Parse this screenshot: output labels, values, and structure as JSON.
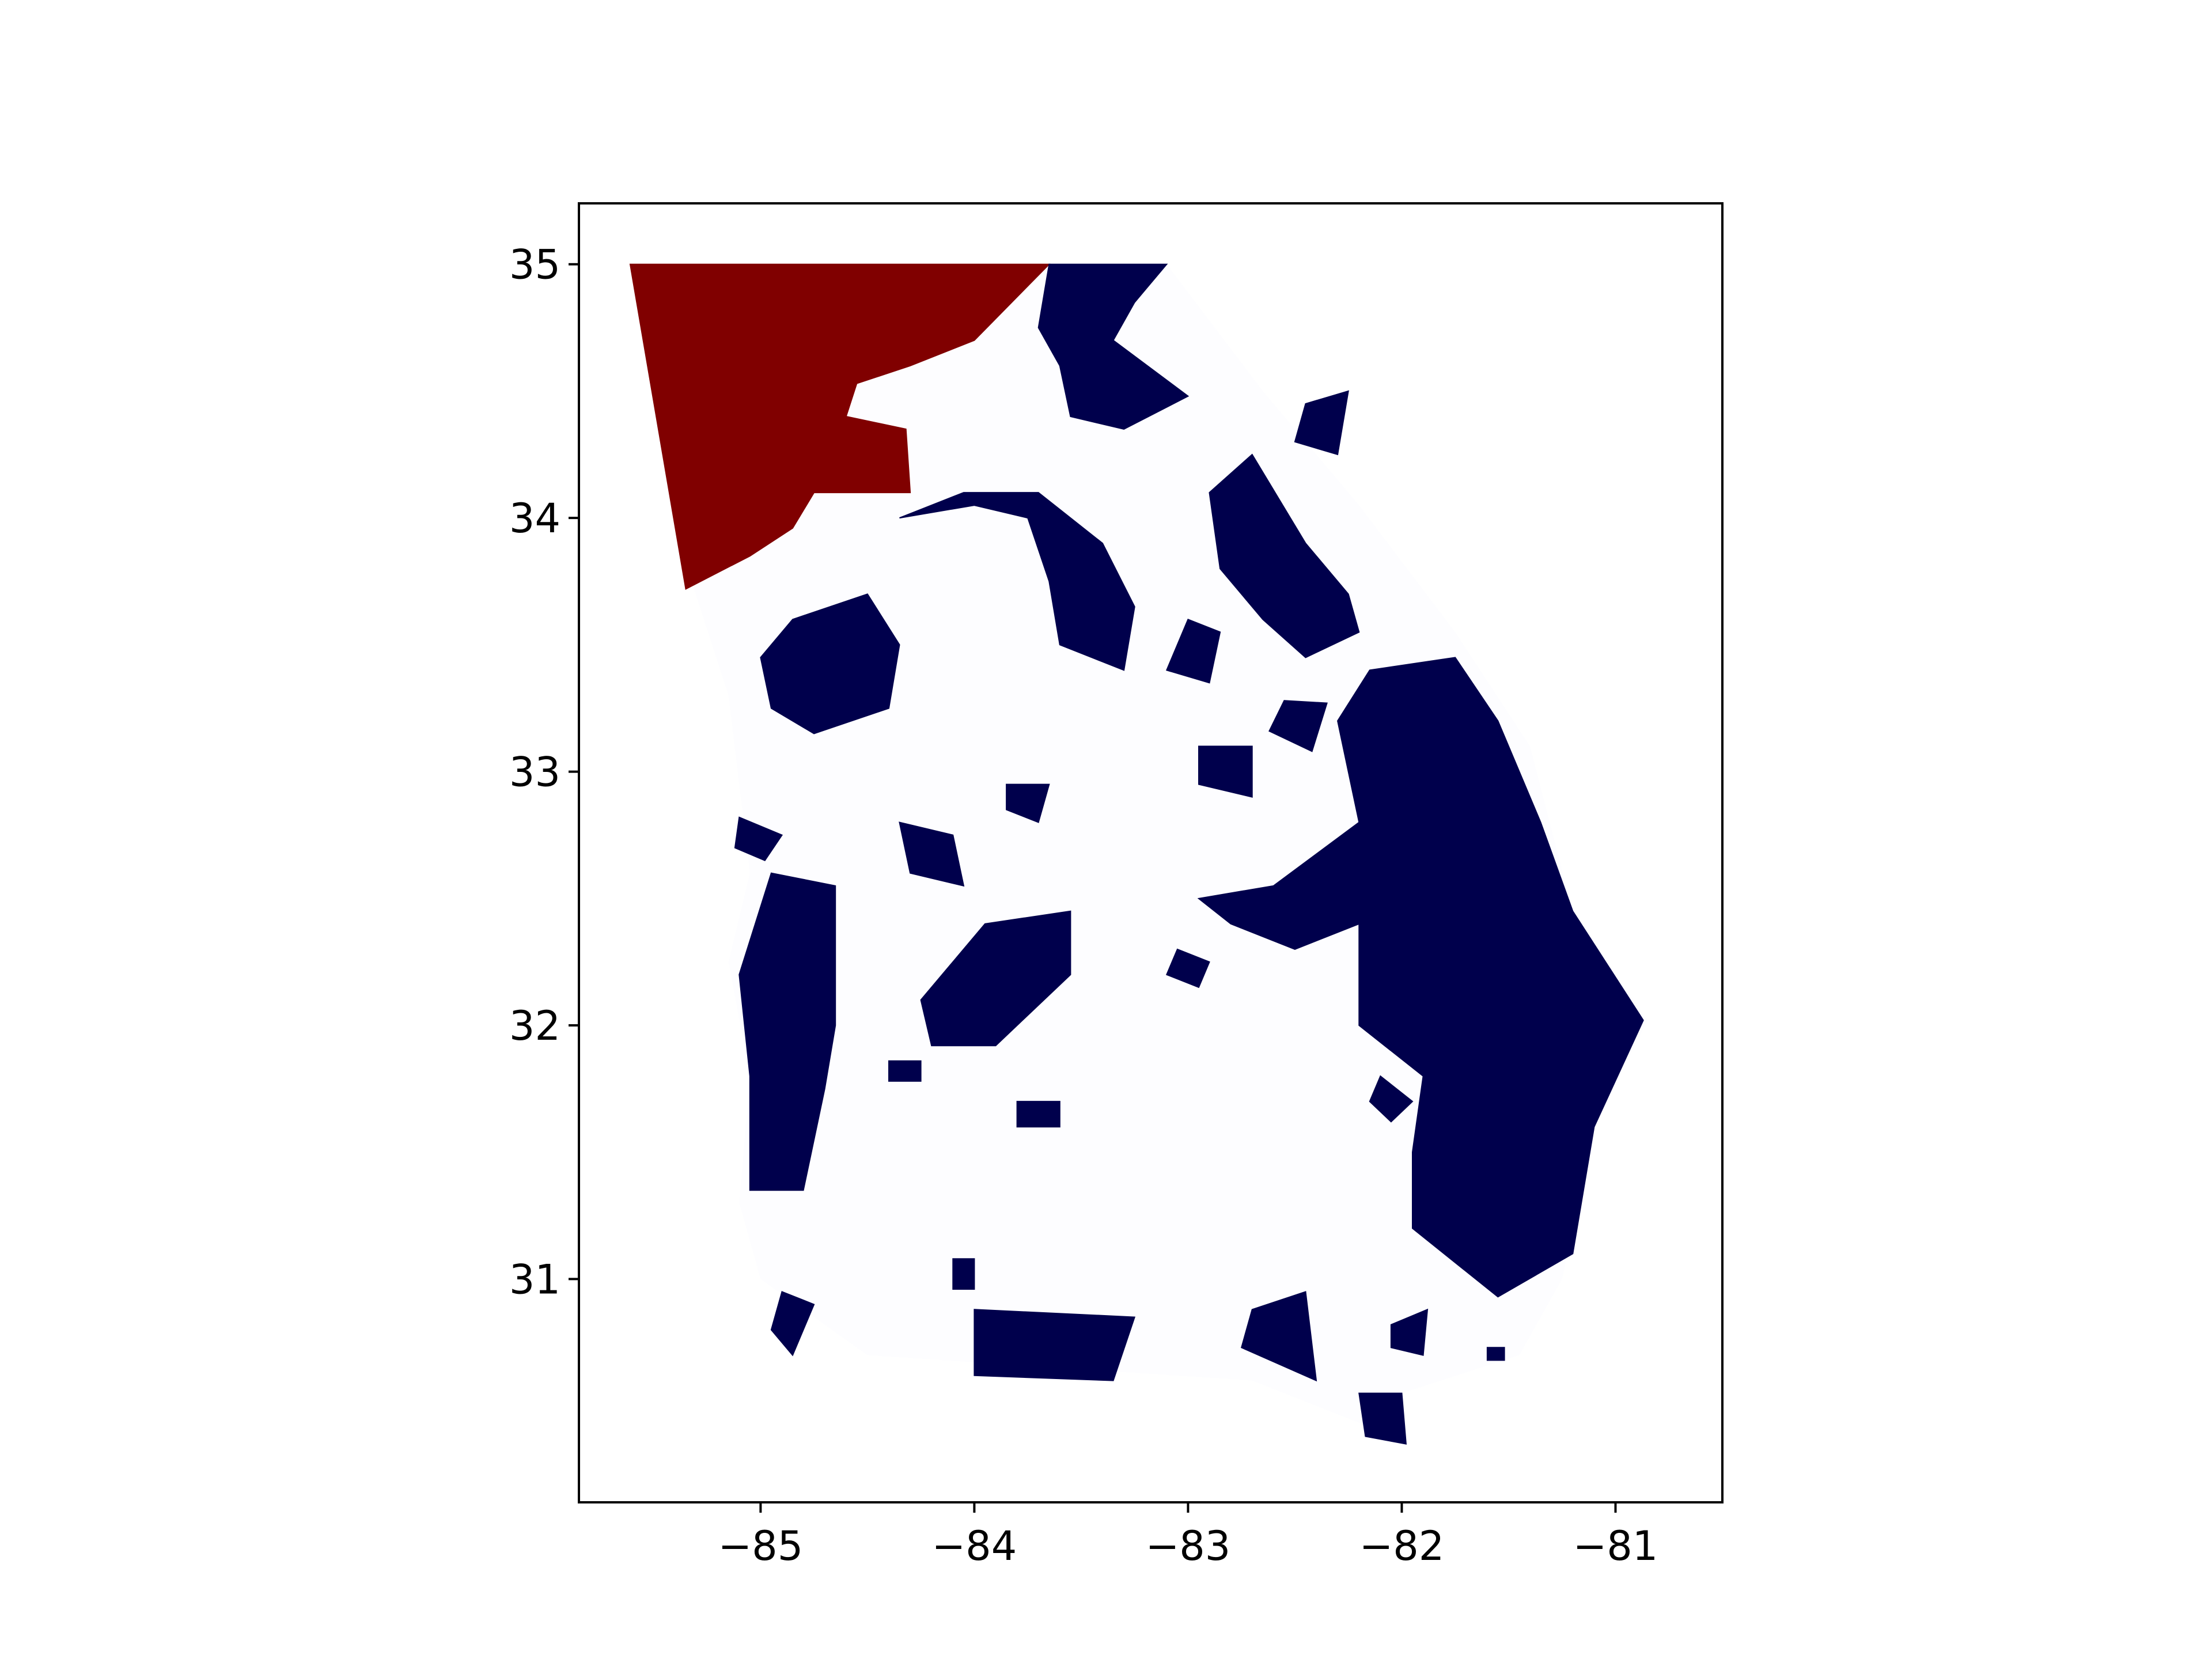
{
  "chart_data": {
    "type": "choropleth-map",
    "title": "",
    "xlabel": "",
    "ylabel": "",
    "xlim": [
      -85.85,
      -80.5
    ],
    "ylim": [
      30.12,
      35.24
    ],
    "x_ticks": [
      -85,
      -84,
      -83,
      -82,
      -81
    ],
    "y_ticks": [
      31,
      32,
      33,
      34,
      35
    ],
    "x_tick_labels": [
      "−85",
      "−84",
      "−83",
      "−82",
      "−81"
    ],
    "y_tick_labels": [
      "31",
      "32",
      "33",
      "34",
      "35"
    ],
    "colors": {
      "background_fill": "#fdfdff",
      "navy": "#00004c",
      "dark_red": "#800000",
      "frame": "#000000"
    },
    "outline": [
      [
        -85.61,
        35
      ],
      [
        -83.1,
        35
      ],
      [
        -82.65,
        34.5
      ],
      [
        -82.2,
        34.05
      ],
      [
        -81.75,
        33.55
      ],
      [
        -81.4,
        33.1
      ],
      [
        -81.2,
        32.45
      ],
      [
        -80.85,
        32.02
      ],
      [
        -81.1,
        31.6
      ],
      [
        -81.25,
        31.0
      ],
      [
        -81.45,
        30.7
      ],
      [
        -82.0,
        30.55
      ],
      [
        -82.1,
        30.4
      ],
      [
        -82.7,
        30.6
      ],
      [
        -84.5,
        30.7
      ],
      [
        -85.0,
        31.0
      ],
      [
        -85.1,
        31.3
      ],
      [
        -85.05,
        31.8
      ],
      [
        -85.15,
        32.25
      ],
      [
        -85.05,
        32.6
      ],
      [
        -85.15,
        33.3
      ],
      [
        -85.4,
        33.95
      ],
      [
        -85.61,
        35
      ]
    ],
    "regions": [
      {
        "color": "dark_red",
        "points": [
          [
            -85.61,
            35
          ],
          [
            -83.65,
            35
          ],
          [
            -84.0,
            34.7
          ],
          [
            -84.3,
            34.6
          ],
          [
            -84.55,
            34.53
          ],
          [
            -84.6,
            34.4
          ],
          [
            -84.32,
            34.35
          ],
          [
            -84.3,
            34.1
          ],
          [
            -84.75,
            34.1
          ],
          [
            -84.85,
            33.96
          ],
          [
            -85.05,
            33.85
          ],
          [
            -85.35,
            33.72
          ]
        ]
      },
      {
        "color": "navy",
        "points": [
          [
            -83.65,
            35
          ],
          [
            -83.1,
            35
          ],
          [
            -83.25,
            34.85
          ],
          [
            -83.35,
            34.7
          ],
          [
            -83.0,
            34.48
          ],
          [
            -83.3,
            34.35
          ],
          [
            -83.55,
            34.4
          ],
          [
            -83.6,
            34.6
          ],
          [
            -83.7,
            34.75
          ]
        ]
      },
      {
        "color": "navy",
        "points": [
          [
            -82.9,
            34.1
          ],
          [
            -82.7,
            34.25
          ],
          [
            -82.45,
            33.9
          ],
          [
            -82.25,
            33.7
          ],
          [
            -82.2,
            33.55
          ],
          [
            -82.45,
            33.45
          ],
          [
            -82.65,
            33.6
          ],
          [
            -82.85,
            33.8
          ]
        ]
      },
      {
        "color": "navy",
        "points": [
          [
            -84.35,
            34.0
          ],
          [
            -84.0,
            34.05
          ],
          [
            -83.75,
            34.0
          ],
          [
            -83.65,
            33.75
          ],
          [
            -83.6,
            33.5
          ],
          [
            -83.3,
            33.4
          ],
          [
            -83.25,
            33.65
          ],
          [
            -83.4,
            33.9
          ],
          [
            -83.7,
            34.1
          ],
          [
            -84.05,
            34.1
          ]
        ]
      },
      {
        "color": "navy",
        "points": [
          [
            -84.85,
            33.6
          ],
          [
            -84.5,
            33.7
          ],
          [
            -84.35,
            33.5
          ],
          [
            -84.4,
            33.25
          ],
          [
            -84.75,
            33.15
          ],
          [
            -84.95,
            33.25
          ],
          [
            -85.0,
            33.45
          ]
        ]
      },
      {
        "color": "navy",
        "points": [
          [
            -82.15,
            33.4
          ],
          [
            -81.75,
            33.45
          ],
          [
            -81.55,
            33.2
          ],
          [
            -81.35,
            32.8
          ],
          [
            -81.2,
            32.45
          ],
          [
            -80.87,
            32.02
          ],
          [
            -81.1,
            31.6
          ],
          [
            -81.2,
            31.1
          ],
          [
            -81.55,
            30.93
          ],
          [
            -81.95,
            31.2
          ],
          [
            -81.95,
            31.5
          ],
          [
            -81.9,
            31.8
          ],
          [
            -82.2,
            32.0
          ],
          [
            -82.2,
            32.4
          ],
          [
            -82.5,
            32.3
          ],
          [
            -82.8,
            32.4
          ],
          [
            -82.95,
            32.5
          ],
          [
            -82.6,
            32.55
          ],
          [
            -82.2,
            32.8
          ],
          [
            -82.3,
            33.2
          ]
        ]
      },
      {
        "color": "navy",
        "points": [
          [
            -84.95,
            32.6
          ],
          [
            -84.65,
            32.55
          ],
          [
            -84.65,
            32.0
          ],
          [
            -84.7,
            31.75
          ],
          [
            -84.8,
            31.35
          ],
          [
            -85.05,
            31.35
          ],
          [
            -85.05,
            31.8
          ],
          [
            -85.1,
            32.2
          ]
        ]
      },
      {
        "color": "navy",
        "points": [
          [
            -84.25,
            32.1
          ],
          [
            -83.95,
            32.4
          ],
          [
            -83.55,
            32.45
          ],
          [
            -83.55,
            32.2
          ],
          [
            -83.9,
            31.92
          ],
          [
            -84.2,
            31.92
          ]
        ]
      },
      {
        "color": "navy",
        "points": [
          [
            -84.0,
            30.88
          ],
          [
            -83.25,
            30.85
          ],
          [
            -83.35,
            30.6
          ],
          [
            -84.0,
            30.62
          ]
        ]
      },
      {
        "color": "navy",
        "points": [
          [
            -82.7,
            30.88
          ],
          [
            -82.45,
            30.95
          ],
          [
            -82.4,
            30.6
          ],
          [
            -82.75,
            30.73
          ]
        ]
      },
      {
        "color": "navy",
        "points": [
          [
            -82.2,
            30.55
          ],
          [
            -82.0,
            30.55
          ],
          [
            -81.98,
            30.35
          ],
          [
            -82.17,
            30.38
          ]
        ]
      },
      {
        "color": "navy",
        "points": [
          [
            -82.95,
            33.1
          ],
          [
            -82.7,
            33.1
          ],
          [
            -82.7,
            32.9
          ],
          [
            -82.95,
            32.95
          ]
        ]
      },
      {
        "color": "navy",
        "points": [
          [
            -82.55,
            33.28
          ],
          [
            -82.35,
            33.27
          ],
          [
            -82.42,
            33.08
          ],
          [
            -82.62,
            33.16
          ]
        ]
      },
      {
        "color": "navy",
        "points": [
          [
            -83.0,
            33.6
          ],
          [
            -82.85,
            33.55
          ],
          [
            -82.9,
            33.35
          ],
          [
            -83.1,
            33.4
          ]
        ]
      },
      {
        "color": "navy",
        "points": [
          [
            -84.35,
            32.8
          ],
          [
            -84.1,
            32.75
          ],
          [
            -84.05,
            32.55
          ],
          [
            -84.3,
            32.6
          ]
        ]
      },
      {
        "color": "navy",
        "points": [
          [
            -85.1,
            32.82
          ],
          [
            -84.9,
            32.75
          ],
          [
            -84.98,
            32.65
          ],
          [
            -85.12,
            32.7
          ]
        ]
      },
      {
        "color": "navy",
        "points": [
          [
            -84.9,
            30.95
          ],
          [
            -84.75,
            30.9
          ],
          [
            -84.85,
            30.7
          ],
          [
            -84.95,
            30.8
          ]
        ]
      },
      {
        "color": "navy",
        "points": [
          [
            -83.05,
            32.3
          ],
          [
            -82.9,
            32.25
          ],
          [
            -82.95,
            32.15
          ],
          [
            -83.1,
            32.2
          ]
        ]
      },
      {
        "color": "navy",
        "points": [
          [
            -82.1,
            31.8
          ],
          [
            -81.95,
            31.7
          ],
          [
            -82.05,
            31.62
          ],
          [
            -82.15,
            31.7
          ]
        ]
      },
      {
        "color": "navy",
        "points": [
          [
            -83.85,
            32.95
          ],
          [
            -83.65,
            32.95
          ],
          [
            -83.7,
            32.8
          ],
          [
            -83.85,
            32.85
          ]
        ]
      },
      {
        "color": "navy",
        "points": [
          [
            -84.0,
            30.96
          ],
          [
            -84.0,
            31.08
          ],
          [
            -84.1,
            31.08
          ],
          [
            -84.1,
            30.96
          ]
        ]
      },
      {
        "color": "navy",
        "points": [
          [
            -84.4,
            31.86
          ],
          [
            -84.25,
            31.86
          ],
          [
            -84.25,
            31.78
          ],
          [
            -84.4,
            31.78
          ]
        ]
      },
      {
        "color": "navy",
        "points": [
          [
            -82.05,
            30.82
          ],
          [
            -81.88,
            30.88
          ],
          [
            -81.9,
            30.7
          ],
          [
            -82.05,
            30.73
          ]
        ]
      },
      {
        "color": "navy",
        "points": [
          [
            -81.6,
            30.73
          ],
          [
            -81.52,
            30.73
          ],
          [
            -81.52,
            30.68
          ],
          [
            -81.6,
            30.68
          ]
        ]
      },
      {
        "color": "navy",
        "points": [
          [
            -82.45,
            34.45
          ],
          [
            -82.25,
            34.5
          ],
          [
            -82.3,
            34.25
          ],
          [
            -82.5,
            34.3
          ]
        ]
      },
      {
        "color": "navy",
        "points": [
          [
            -83.6,
            31.7
          ],
          [
            -83.8,
            31.7
          ],
          [
            -83.8,
            31.6
          ],
          [
            -83.6,
            31.6
          ]
        ]
      }
    ]
  }
}
